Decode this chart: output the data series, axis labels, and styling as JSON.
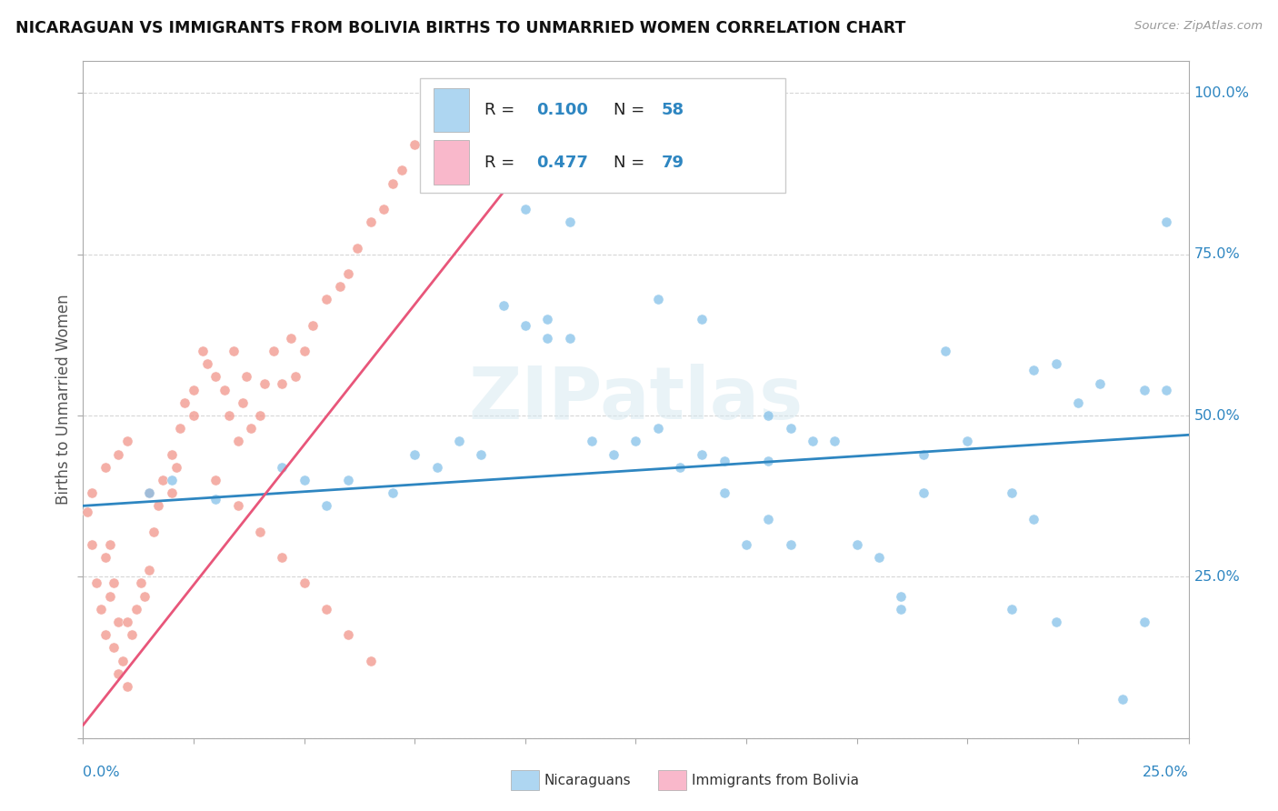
{
  "title": "NICARAGUAN VS IMMIGRANTS FROM BOLIVIA BIRTHS TO UNMARRIED WOMEN CORRELATION CHART",
  "source": "Source: ZipAtlas.com",
  "ylabel": "Births to Unmarried Women",
  "xlim": [
    0.0,
    0.25
  ],
  "ylim": [
    0.0,
    1.05
  ],
  "legend_color1": "#aed6f1",
  "legend_color2": "#f9b8cb",
  "scatter_blue_color": "#85c1e9",
  "scatter_pink_color": "#f1948a",
  "trendline_blue_color": "#2e86c1",
  "trendline_pink_color": "#e8567a",
  "watermark": "ZIPatlas",
  "R_blue": "0.100",
  "N_blue": "58",
  "R_pink": "0.477",
  "N_pink": "79",
  "blue_trend_x": [
    0.0,
    0.25
  ],
  "blue_trend_y": [
    0.36,
    0.47
  ],
  "pink_trend_x": [
    0.0,
    0.115
  ],
  "pink_trend_y": [
    0.02,
    1.02
  ],
  "blue_x": [
    0.015,
    0.02,
    0.03,
    0.045,
    0.05,
    0.055,
    0.06,
    0.07,
    0.075,
    0.08,
    0.085,
    0.09,
    0.095,
    0.1,
    0.105,
    0.11,
    0.115,
    0.12,
    0.125,
    0.13,
    0.135,
    0.14,
    0.145,
    0.15,
    0.155,
    0.16,
    0.165,
    0.17,
    0.175,
    0.18,
    0.185,
    0.19,
    0.195,
    0.2,
    0.21,
    0.215,
    0.22,
    0.225,
    0.23,
    0.24,
    0.245,
    0.1,
    0.11,
    0.105,
    0.14,
    0.155,
    0.16,
    0.13,
    0.145,
    0.155,
    0.185,
    0.19,
    0.21,
    0.215,
    0.22,
    0.235,
    0.24,
    0.245
  ],
  "blue_y": [
    0.38,
    0.4,
    0.37,
    0.42,
    0.4,
    0.36,
    0.4,
    0.38,
    0.44,
    0.42,
    0.46,
    0.44,
    0.67,
    0.64,
    0.62,
    0.62,
    0.46,
    0.44,
    0.46,
    0.48,
    0.42,
    0.44,
    0.38,
    0.3,
    0.34,
    0.3,
    0.46,
    0.46,
    0.3,
    0.28,
    0.22,
    0.44,
    0.6,
    0.46,
    0.38,
    0.57,
    0.58,
    0.52,
    0.55,
    0.18,
    0.54,
    0.82,
    0.8,
    0.65,
    0.65,
    0.5,
    0.48,
    0.68,
    0.43,
    0.43,
    0.2,
    0.38,
    0.2,
    0.34,
    0.18,
    0.06,
    0.54,
    0.8
  ],
  "pink_x": [
    0.001,
    0.002,
    0.002,
    0.003,
    0.004,
    0.005,
    0.005,
    0.006,
    0.006,
    0.007,
    0.007,
    0.008,
    0.008,
    0.009,
    0.01,
    0.01,
    0.011,
    0.012,
    0.013,
    0.014,
    0.015,
    0.016,
    0.017,
    0.018,
    0.02,
    0.021,
    0.022,
    0.023,
    0.025,
    0.027,
    0.028,
    0.03,
    0.032,
    0.033,
    0.034,
    0.035,
    0.036,
    0.037,
    0.038,
    0.04,
    0.041,
    0.043,
    0.045,
    0.047,
    0.048,
    0.05,
    0.052,
    0.055,
    0.058,
    0.06,
    0.062,
    0.065,
    0.068,
    0.07,
    0.072,
    0.075,
    0.078,
    0.08,
    0.083,
    0.085,
    0.088,
    0.09,
    0.092,
    0.095,
    0.1,
    0.005,
    0.008,
    0.01,
    0.015,
    0.02,
    0.025,
    0.03,
    0.035,
    0.04,
    0.045,
    0.05,
    0.055,
    0.06,
    0.065
  ],
  "pink_y": [
    0.35,
    0.3,
    0.38,
    0.24,
    0.2,
    0.28,
    0.16,
    0.22,
    0.3,
    0.14,
    0.24,
    0.1,
    0.18,
    0.12,
    0.08,
    0.18,
    0.16,
    0.2,
    0.24,
    0.22,
    0.26,
    0.32,
    0.36,
    0.4,
    0.38,
    0.42,
    0.48,
    0.52,
    0.54,
    0.6,
    0.58,
    0.56,
    0.54,
    0.5,
    0.6,
    0.46,
    0.52,
    0.56,
    0.48,
    0.5,
    0.55,
    0.6,
    0.55,
    0.62,
    0.56,
    0.6,
    0.64,
    0.68,
    0.7,
    0.72,
    0.76,
    0.8,
    0.82,
    0.86,
    0.88,
    0.92,
    0.96,
    1.0,
    0.98,
    1.0,
    1.0,
    1.0,
    1.0,
    1.0,
    1.0,
    0.42,
    0.44,
    0.46,
    0.38,
    0.44,
    0.5,
    0.4,
    0.36,
    0.32,
    0.28,
    0.24,
    0.2,
    0.16,
    0.12
  ]
}
